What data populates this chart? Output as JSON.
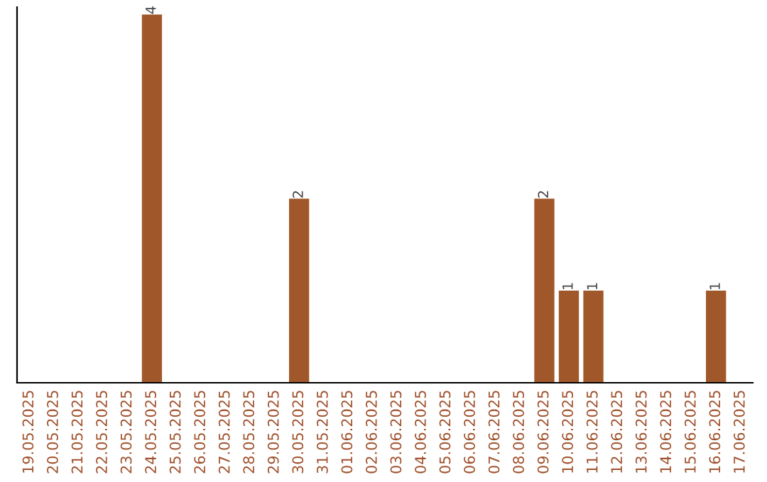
{
  "chart_data": {
    "type": "bar",
    "categories": [
      "19.05.2025",
      "20.05.2025",
      "21.05.2025",
      "22.05.2025",
      "23.05.2025",
      "24.05.2025",
      "25.05.2025",
      "26.05.2025",
      "27.05.2025",
      "28.05.2025",
      "29.05.2025",
      "30.05.2025",
      "31.05.2025",
      "01.06.2025",
      "02.06.2025",
      "03.06.2025",
      "04.06.2025",
      "05.06.2025",
      "06.06.2025",
      "07.06.2025",
      "08.06.2025",
      "09.06.2025",
      "10.06.2025",
      "11.06.2025",
      "12.06.2025",
      "13.06.2025",
      "14.06.2025",
      "15.06.2025",
      "16.06.2025",
      "17.06.2025"
    ],
    "values": [
      0,
      0,
      0,
      0,
      0,
      4,
      0,
      0,
      0,
      0,
      0,
      2,
      0,
      0,
      0,
      0,
      0,
      0,
      0,
      0,
      0,
      2,
      1,
      1,
      0,
      0,
      0,
      0,
      1,
      0
    ],
    "color": "#a0582a",
    "value_labels": [
      null,
      null,
      null,
      null,
      null,
      "4",
      null,
      null,
      null,
      null,
      null,
      "2",
      null,
      null,
      null,
      null,
      null,
      null,
      null,
      null,
      null,
      "2",
      "1",
      "1",
      null,
      null,
      null,
      null,
      "1",
      null
    ],
    "tick_labels": "x",
    "grid": false,
    "legend": false
  }
}
